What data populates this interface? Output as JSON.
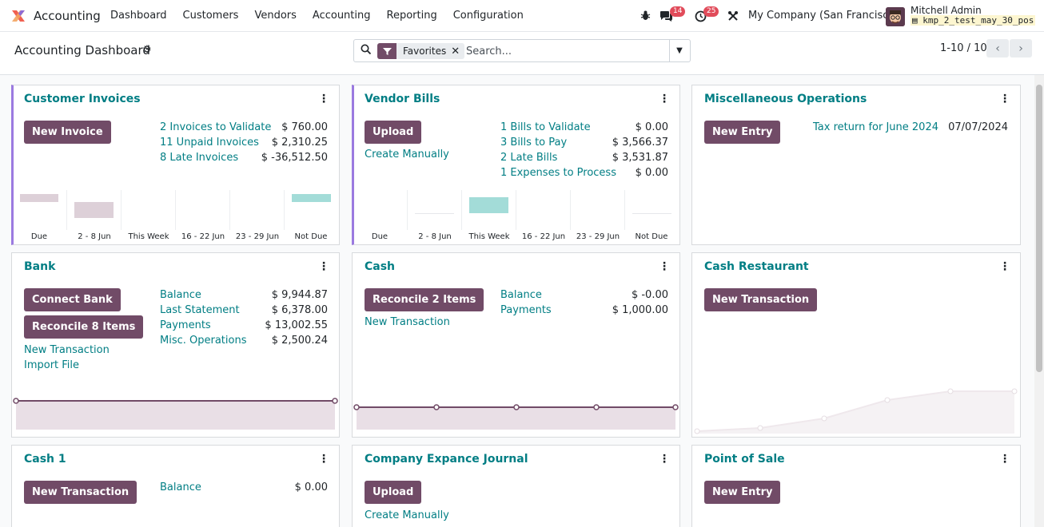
{
  "app": {
    "name": "Accounting"
  },
  "menu": [
    "Dashboard",
    "Customers",
    "Vendors",
    "Accounting",
    "Reporting",
    "Configuration"
  ],
  "nav": {
    "messages_badge": "14",
    "activities_badge": "25",
    "company": "My Company (San Francisco)",
    "user_name": "Mitchell Admin",
    "db_name": "kmp_2_test_may_30_pos"
  },
  "control": {
    "title": "Accounting Dashboard",
    "facet_label": "Favorites",
    "search_placeholder": "Search...",
    "pager": "1-10 / 10"
  },
  "cards": {
    "customer_invoices": {
      "title": "Customer Invoices",
      "button": "New Invoice",
      "stats": [
        {
          "label": "2 Invoices to Validate",
          "value": "$ 760.00"
        },
        {
          "label": "11 Unpaid Invoices",
          "value": "$ 2,310.25"
        },
        {
          "label": "8 Late Invoices",
          "value": "$ -36,512.50"
        }
      ],
      "bars": [
        "Due",
        "2 - 8 Jun",
        "This Week",
        "16 - 22 Jun",
        "23 - 29 Jun",
        "Not Due"
      ]
    },
    "vendor_bills": {
      "title": "Vendor Bills",
      "button": "Upload",
      "link": "Create Manually",
      "stats": [
        {
          "label": "1 Bills to Validate",
          "value": "$ 0.00"
        },
        {
          "label": "3 Bills to Pay",
          "value": "$ 3,566.37"
        },
        {
          "label": "2 Late Bills",
          "value": "$ 3,531.87"
        },
        {
          "label": "1 Expenses to Process",
          "value": "$ 0.00"
        }
      ],
      "bars": [
        "Due",
        "2 - 8 Jun",
        "This Week",
        "16 - 22 Jun",
        "23 - 29 Jun",
        "Not Due"
      ]
    },
    "misc": {
      "title": "Miscellaneous Operations",
      "button": "New Entry",
      "link": "Tax return for June 2024",
      "date": "07/07/2024"
    },
    "bank": {
      "title": "Bank",
      "button1": "Connect Bank",
      "button2": "Reconcile 8 Items",
      "link1": "New Transaction",
      "link2": "Import File",
      "stats": [
        {
          "label": "Balance",
          "value": "$ 9,944.87"
        },
        {
          "label": "Last Statement",
          "value": "$ 6,378.00"
        },
        {
          "label": "Payments",
          "value": "$ 13,002.55"
        },
        {
          "label": "Misc. Operations",
          "value": "$ 2,500.24"
        }
      ]
    },
    "cash": {
      "title": "Cash",
      "button": "Reconcile 2 Items",
      "link": "New Transaction",
      "stats": [
        {
          "label": "Balance",
          "value": "$ -0.00"
        },
        {
          "label": "Payments",
          "value": "$ 1,000.00"
        }
      ]
    },
    "cash_restaurant": {
      "title": "Cash Restaurant",
      "button": "New Transaction"
    },
    "cash1": {
      "title": "Cash 1",
      "button": "New Transaction",
      "stats": [
        {
          "label": "Balance",
          "value": "$ 0.00"
        }
      ]
    },
    "expance": {
      "title": "Company Expance Journal",
      "button": "Upload",
      "link": "Create Manually"
    },
    "pos": {
      "title": "Point of Sale",
      "button": "New Entry"
    }
  },
  "colors": {
    "primary": "#714b67",
    "link": "#017e84",
    "accent": "#9b7ae0"
  }
}
